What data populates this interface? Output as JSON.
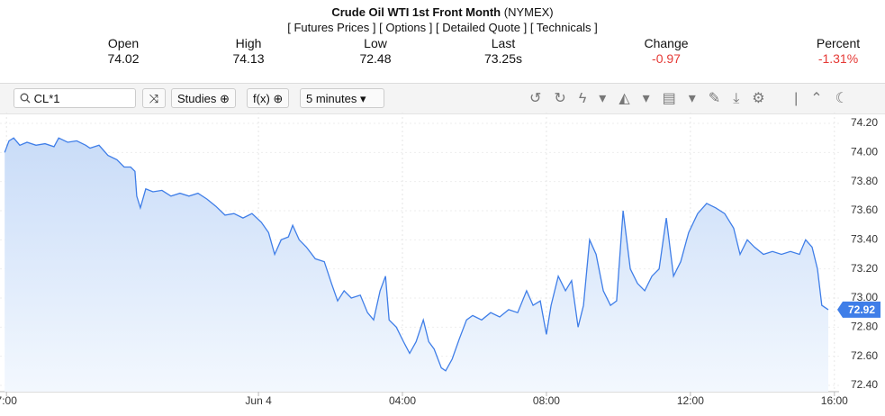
{
  "header": {
    "title": "Crude Oil WTI 1st Front Month",
    "exchange": "(NYMEX)",
    "links": [
      "[ Futures Prices ]",
      "[ Options ]",
      "[ Detailed Quote ]",
      "[ Technicals ]"
    ]
  },
  "quote": {
    "labels": [
      "Open",
      "High",
      "Low",
      "Last",
      "Change",
      "Percent"
    ],
    "values": [
      "74.02",
      "74.13",
      "72.48",
      "73.25s",
      "-0.97",
      "-1.31%"
    ]
  },
  "toolbar": {
    "symbol": "CL*1",
    "studies": "Studies",
    "fx": "f(x)",
    "interval": "5 minutes"
  },
  "chart_data": {
    "type": "line",
    "color": "#3f7ee8",
    "grid": true,
    "x": [
      -7.05,
      -6.93,
      -6.8,
      -6.63,
      -6.43,
      -6.18,
      -5.93,
      -5.68,
      -5.55,
      -5.3,
      -5.05,
      -4.8,
      -4.68,
      -4.43,
      -4.18,
      -3.93,
      -3.73,
      -3.55,
      -3.43,
      -3.38,
      -3.28,
      -3.13,
      -2.93,
      -2.68,
      -2.43,
      -2.18,
      -1.93,
      -1.68,
      -1.43,
      -1.18,
      -0.93,
      -0.68,
      -0.43,
      -0.18,
      0.08,
      0.28,
      0.45,
      0.63,
      0.83,
      0.95,
      1.13,
      1.33,
      1.58,
      1.83,
      2.03,
      2.2,
      2.38,
      2.58,
      2.83,
      3.03,
      3.2,
      3.38,
      3.53,
      3.63,
      3.83,
      4.03,
      4.2,
      4.38,
      4.58,
      4.73,
      4.88,
      5.08,
      5.2,
      5.38,
      5.58,
      5.78,
      5.95,
      6.2,
      6.45,
      6.7,
      6.95,
      7.2,
      7.45,
      7.63,
      7.83,
      8.0,
      8.13,
      8.33,
      8.53,
      8.7,
      8.88,
      9.03,
      9.2,
      9.38,
      9.58,
      9.78,
      9.95,
      10.13,
      10.33,
      10.53,
      10.73,
      10.93,
      11.13,
      11.33,
      11.53,
      11.73,
      11.95,
      12.2,
      12.45,
      12.7,
      12.95,
      13.2,
      13.38,
      13.58,
      13.78,
      14.03,
      14.28,
      14.53,
      14.78,
      15.03,
      15.2,
      15.38,
      15.53,
      15.65,
      15.83
    ],
    "values": [
      74.0,
      74.08,
      74.1,
      74.05,
      74.07,
      74.05,
      74.06,
      74.04,
      74.1,
      74.07,
      74.08,
      74.05,
      74.03,
      74.05,
      73.98,
      73.95,
      73.9,
      73.9,
      73.87,
      73.7,
      73.62,
      73.75,
      73.73,
      73.74,
      73.7,
      73.72,
      73.7,
      73.72,
      73.68,
      73.63,
      73.57,
      73.58,
      73.55,
      73.58,
      73.52,
      73.45,
      73.3,
      73.4,
      73.42,
      73.5,
      73.4,
      73.35,
      73.27,
      73.25,
      73.1,
      72.98,
      73.05,
      73.0,
      73.02,
      72.9,
      72.85,
      73.05,
      73.15,
      72.85,
      72.8,
      72.7,
      72.62,
      72.7,
      72.85,
      72.7,
      72.65,
      72.52,
      72.5,
      72.58,
      72.72,
      72.85,
      72.88,
      72.85,
      72.9,
      72.87,
      72.92,
      72.9,
      73.05,
      72.95,
      72.98,
      72.75,
      72.95,
      73.15,
      73.05,
      73.12,
      72.8,
      72.95,
      73.4,
      73.3,
      73.05,
      72.95,
      72.98,
      73.6,
      73.2,
      73.1,
      73.05,
      73.15,
      73.2,
      73.55,
      73.15,
      73.25,
      73.45,
      73.58,
      73.65,
      73.62,
      73.58,
      73.48,
      73.3,
      73.4,
      73.35,
      73.3,
      73.32,
      73.3,
      73.32,
      73.3,
      73.4,
      73.35,
      73.2,
      72.95,
      72.92
    ],
    "xlim": [
      -7.18,
      16.13
    ],
    "xticks": [
      {
        "value": -7,
        "label": "7:00"
      },
      {
        "value": 0,
        "label": "Jun 4"
      },
      {
        "value": 4,
        "label": "04:00"
      },
      {
        "value": 8,
        "label": "08:00"
      },
      {
        "value": 12,
        "label": "12:00"
      },
      {
        "value": 16,
        "label": "16:00"
      }
    ],
    "ylim": [
      72.4,
      74.2
    ],
    "yticks": [
      {
        "value": 72.4,
        "label": "72.40"
      },
      {
        "value": 72.6,
        "label": "72.60"
      },
      {
        "value": 72.8,
        "label": "72.80"
      },
      {
        "value": 73.0,
        "label": "73.00"
      },
      {
        "value": 73.2,
        "label": "73.20"
      },
      {
        "value": 73.4,
        "label": "73.40"
      },
      {
        "value": 73.6,
        "label": "73.60"
      },
      {
        "value": 73.8,
        "label": "73.80"
      },
      {
        "value": 74.0,
        "label": "74.00"
      },
      {
        "value": 74.2,
        "label": "74.20"
      }
    ]
  }
}
